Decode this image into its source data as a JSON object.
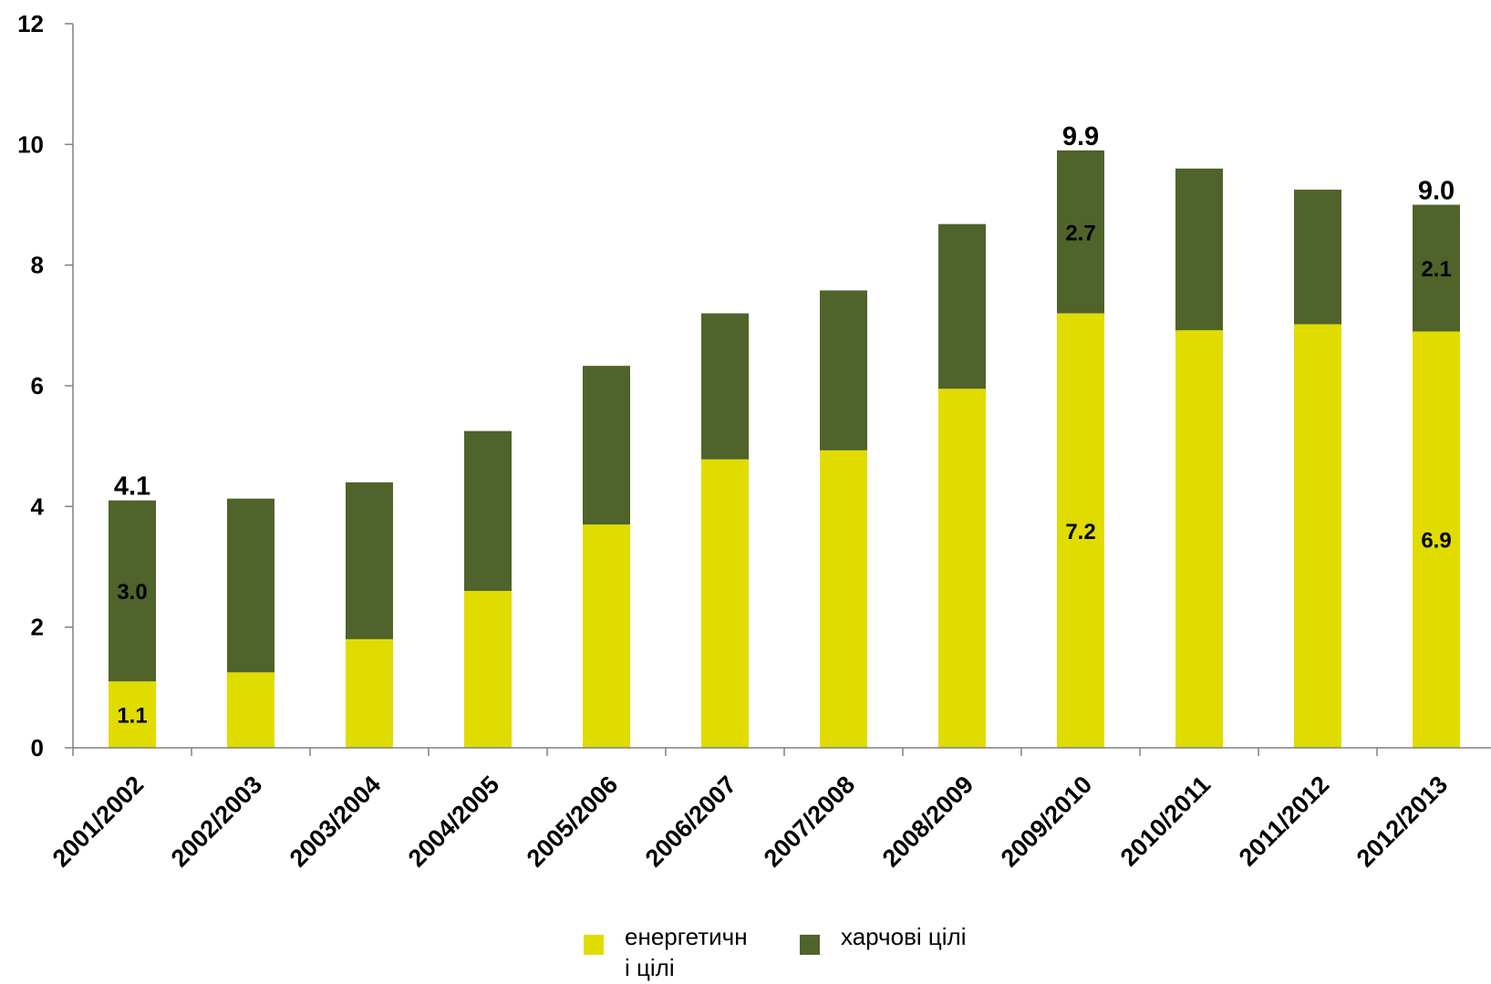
{
  "chart_data": {
    "type": "bar",
    "stacked": true,
    "categories": [
      "2001/2002",
      "2002/2003",
      "2003/2004",
      "2004/2005",
      "2005/2006",
      "2006/2007",
      "2007/2008",
      "2008/2009",
      "2009/2010",
      "2010/2011",
      "2011/2012",
      "2012/2013"
    ],
    "series": [
      {
        "name": "енергетичні цілі",
        "legend_lines": [
          "енергетичн",
          "і цілі"
        ],
        "color": "#e0dc00",
        "values": [
          1.1,
          1.25,
          1.8,
          2.6,
          3.7,
          4.78,
          4.93,
          5.95,
          7.2,
          6.92,
          7.02,
          6.9
        ]
      },
      {
        "name": "харчові цілі",
        "legend_lines": [
          "харчові цілі"
        ],
        "color": "#50632a",
        "values": [
          3.0,
          2.88,
          2.6,
          2.65,
          2.63,
          2.42,
          2.65,
          2.73,
          2.7,
          2.68,
          2.23,
          2.1
        ]
      }
    ],
    "totals": [
      4.1,
      4.13,
      4.4,
      5.25,
      6.33,
      7.2,
      7.58,
      8.68,
      9.9,
      9.6,
      9.25,
      9.0
    ],
    "ylim": [
      0,
      12
    ],
    "yticks": [
      0,
      2,
      4,
      6,
      8,
      10,
      12
    ],
    "labels": {
      "segments": [
        {
          "index": 0,
          "series": 0,
          "text": "1.1"
        },
        {
          "index": 0,
          "series": 1,
          "text": "3.0"
        },
        {
          "index": 8,
          "series": 0,
          "text": "7.2"
        },
        {
          "index": 8,
          "series": 1,
          "text": "2.7"
        },
        {
          "index": 11,
          "series": 0,
          "text": "6.9"
        },
        {
          "index": 11,
          "series": 1,
          "text": "2.1"
        }
      ],
      "totals": [
        {
          "index": 0,
          "text": "4.1"
        },
        {
          "index": 8,
          "text": "9.9"
        },
        {
          "index": 11,
          "text": "9.0"
        }
      ]
    },
    "legend_position": "bottom-center",
    "grid": false
  }
}
